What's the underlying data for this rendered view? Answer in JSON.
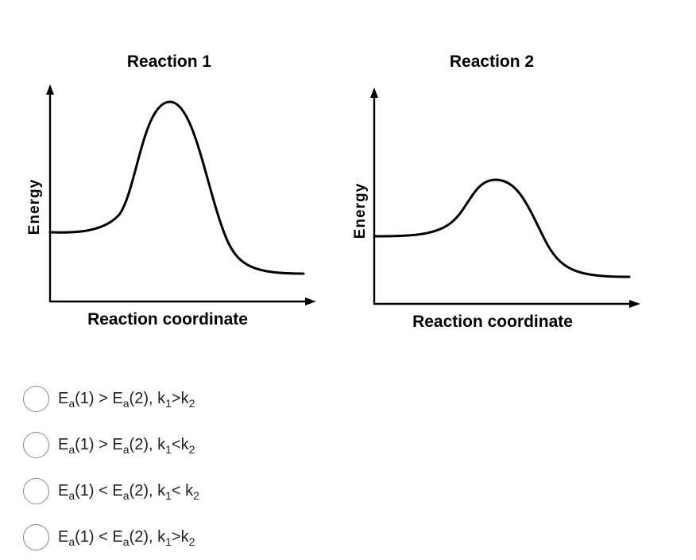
{
  "charts": [
    {
      "title": "Reaction 1",
      "xlabel": "Reaction coordinate",
      "ylabel": "Energy"
    },
    {
      "title": "Reaction 2",
      "xlabel": "Reaction coordinate",
      "ylabel": "Energy"
    }
  ],
  "options": [
    {
      "ea1": "E",
      "ea1_sub": "a",
      "ea1_arg": "(1)",
      "op1": " > ",
      "ea2": "E",
      "ea2_sub": "a",
      "ea2_arg": "(2), ",
      "k1": "k",
      "k1_sub": "1",
      "op2": ">",
      "k2": "k",
      "k2_sub": "2"
    },
    {
      "ea1": "E",
      "ea1_sub": "a",
      "ea1_arg": "(1)",
      "op1": " > ",
      "ea2": "E",
      "ea2_sub": "a",
      "ea2_arg": "(2), ",
      "k1": "k",
      "k1_sub": "1",
      "op2": "<",
      "k2": "k",
      "k2_sub": "2"
    },
    {
      "ea1": "E",
      "ea1_sub": "a",
      "ea1_arg": "(1)",
      "op1": " < ",
      "ea2": "E",
      "ea2_sub": "a",
      "ea2_arg": "(2), ",
      "k1": "k",
      "k1_sub": "1",
      "op2": "< ",
      "k2": "k",
      "k2_sub": "2"
    },
    {
      "ea1": "E",
      "ea1_sub": "a",
      "ea1_arg": "(1)",
      "op1": " < ",
      "ea2": "E",
      "ea2_sub": "a",
      "ea2_arg": "(2), ",
      "k1": "k",
      "k1_sub": "1",
      "op2": ">",
      "k2": "k",
      "k2_sub": "2"
    }
  ]
}
